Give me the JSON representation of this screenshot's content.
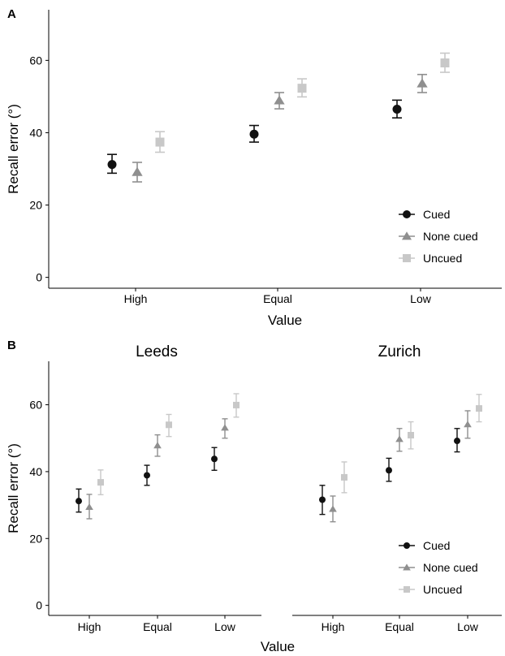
{
  "chart_data": [
    {
      "panel_label": "A",
      "type": "scatter",
      "categories": [
        "High",
        "Equal",
        "Low"
      ],
      "xlabel": "Value",
      "ylabel": "Recall error (°)",
      "ylim": [
        -3,
        74
      ],
      "yticks": [
        0,
        20,
        40,
        60
      ],
      "legend": {
        "placement": "bottom-right"
      },
      "series": [
        {
          "name": "Cued",
          "marker": "circle",
          "color": "#111111",
          "values": [
            31.2,
            39.6,
            46.5
          ],
          "err_low": [
            28.8,
            37.4,
            44.1
          ],
          "err_high": [
            34.0,
            42.0,
            49.0
          ]
        },
        {
          "name": "None cued",
          "marker": "triangle",
          "color": "#8f8f8f",
          "values": [
            29.1,
            48.9,
            53.6
          ],
          "err_low": [
            26.4,
            46.6,
            51.1
          ],
          "err_high": [
            31.8,
            51.1,
            56.1
          ]
        },
        {
          "name": "Uncued",
          "marker": "square",
          "color": "#c8c8c8",
          "values": [
            37.4,
            52.3,
            59.3
          ],
          "err_low": [
            34.6,
            49.9,
            56.7
          ],
          "err_high": [
            40.3,
            54.9,
            62.0
          ]
        }
      ]
    },
    {
      "panel_label": "B",
      "type": "scatter",
      "facets": [
        {
          "title": "Leeds",
          "categories": [
            "High",
            "Equal",
            "Low"
          ],
          "series": [
            {
              "name": "Cued",
              "values": [
                31.2,
                38.9,
                43.8
              ],
              "err_low": [
                27.9,
                35.9,
                40.4
              ],
              "err_high": [
                34.8,
                41.9,
                47.2
              ]
            },
            {
              "name": "None cued",
              "values": [
                29.4,
                47.8,
                53.1
              ],
              "err_low": [
                25.9,
                44.6,
                50.0
              ],
              "err_high": [
                33.2,
                51.0,
                55.8
              ]
            },
            {
              "name": "Uncued",
              "values": [
                36.8,
                54.0,
                59.9
              ],
              "err_low": [
                33.1,
                50.5,
                56.3
              ],
              "err_high": [
                40.5,
                57.1,
                63.3
              ]
            }
          ]
        },
        {
          "title": "Zurich",
          "categories": [
            "High",
            "Equal",
            "Low"
          ],
          "series": [
            {
              "name": "Cued",
              "values": [
                31.6,
                40.4,
                49.2
              ],
              "err_low": [
                27.2,
                37.1,
                45.9
              ],
              "err_high": [
                35.9,
                44.0,
                52.9
              ]
            },
            {
              "name": "None cued",
              "values": [
                28.8,
                49.7,
                54.1
              ],
              "err_low": [
                25.0,
                46.1,
                50.0
              ],
              "err_high": [
                32.7,
                52.9,
                58.2
              ]
            },
            {
              "name": "Uncued",
              "values": [
                38.3,
                50.9,
                58.9
              ],
              "err_low": [
                33.7,
                46.8,
                54.9
              ],
              "err_high": [
                42.9,
                54.9,
                63.1
              ]
            }
          ]
        }
      ],
      "xlabel": "Value",
      "ylabel": "Recall error (°)",
      "ylim": [
        -3,
        73
      ],
      "yticks": [
        0,
        20,
        40,
        60
      ],
      "legend": {
        "placement": "bottom-right",
        "entries": [
          "Cued",
          "None cued",
          "Uncued"
        ]
      }
    }
  ]
}
